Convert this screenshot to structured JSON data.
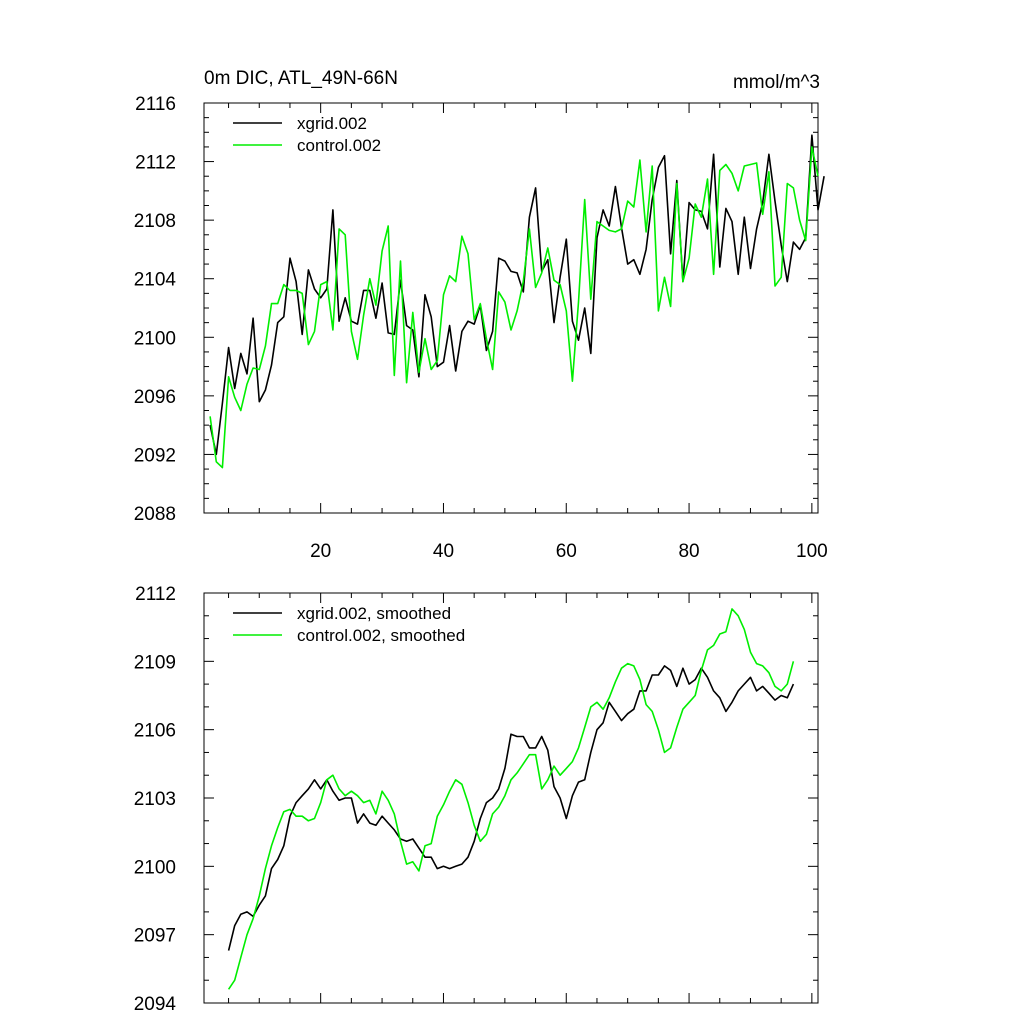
{
  "chart_data": [
    {
      "type": "line",
      "title": "0m DIC, ATL_49N-66N",
      "units": "mmol/m^3",
      "xlabel": "",
      "ylabel": "",
      "xlim": [
        1,
        101
      ],
      "ylim": [
        2088,
        2116
      ],
      "yticks": [
        2088,
        2092,
        2096,
        2100,
        2104,
        2108,
        2112,
        2116
      ],
      "yticks_minor_step": 1,
      "xticks": [
        20,
        40,
        60,
        80,
        100
      ],
      "xticks_minor_step": 5,
      "xtick_labels_shown": true,
      "legend": "top-left",
      "series": [
        {
          "name": "xgrid.002",
          "color": "#000000",
          "x_start": 2,
          "values": [
            2094,
            2092,
            2095.5,
            2099.3,
            2096.5,
            2098.9,
            2097.5,
            2101.3,
            2095.6,
            2096.4,
            2098.1,
            2101,
            2101.4,
            2105.4,
            2103.8,
            2100.2,
            2104.6,
            2103.3,
            2102.7,
            2103.3,
            2108.7,
            2101.1,
            2102.7,
            2101.1,
            2100.9,
            2103.2,
            2103.2,
            2101.3,
            2103.7,
            2100.3,
            2100.2,
            2103.9,
            2100.8,
            2100.5,
            2097.3,
            2102.9,
            2101.4,
            2098,
            2098.3,
            2100.8,
            2097.7,
            2100.4,
            2101.1,
            2100.9,
            2102.2,
            2099.1,
            2100.4,
            2105.4,
            2105.2,
            2104.5,
            2104.4,
            2103.1,
            2108.2,
            2110.2,
            2104.5,
            2105.3,
            2101,
            2104.1,
            2106.7,
            2101.1,
            2099.8,
            2102,
            2098.9,
            2106.8,
            2108.7,
            2107.6,
            2110.3,
            2107.5,
            2105,
            2105.3,
            2104.3,
            2106,
            2109.4,
            2111.6,
            2112.4,
            2105.7,
            2110.7,
            2103.8,
            2109.2,
            2108.7,
            2108.6,
            2107.4,
            2112.5,
            2104.8,
            2108.8,
            2107.9,
            2104.3,
            2108.2,
            2104.7,
            2107.4,
            2109.2,
            2112.5,
            2109.3,
            2106.3,
            2103.8,
            2106.5,
            2106,
            2106.8,
            2113.8,
            2108.7,
            2111
          ]
        },
        {
          "name": "control.002",
          "color": "#00ee00",
          "x_start": 2,
          "values": [
            2094.6,
            2091.5,
            2091.1,
            2097.3,
            2095.9,
            2095,
            2096.8,
            2097.9,
            2097.8,
            2099.4,
            2102.3,
            2102.3,
            2103.6,
            2103.2,
            2103.2,
            2103,
            2099.5,
            2100.4,
            2103.6,
            2103.8,
            2100.5,
            2107.4,
            2107,
            2100.4,
            2098.5,
            2101.5,
            2104,
            2102.2,
            2105.9,
            2107.6,
            2097.4,
            2105.2,
            2096.9,
            2101.7,
            2097.6,
            2099.9,
            2097.8,
            2098.4,
            2102.9,
            2104.2,
            2103.8,
            2106.9,
            2105.7,
            2101.2,
            2102.3,
            2099.9,
            2097.8,
            2103.1,
            2102.4,
            2100.5,
            2101.8,
            2103.8,
            2107.4,
            2103.4,
            2104.4,
            2106.1,
            2103.9,
            2103.6,
            2101.8,
            2097,
            2102.4,
            2109.4,
            2102.6,
            2107.9,
            2107.6,
            2107.3,
            2107.2,
            2107.4,
            2109.3,
            2108.9,
            2112.1,
            2107.2,
            2111.7,
            2101.8,
            2104.1,
            2102.1,
            2110.5,
            2103.8,
            2105.4,
            2109.1,
            2108.2,
            2110.8,
            2104.3,
            2111.4,
            2111.8,
            2111.2,
            2110,
            2111.7,
            2111.8,
            2111.9,
            2108.4,
            2111.3,
            2103.5,
            2104.1,
            2110.5,
            2110.2,
            2108,
            2106.6,
            2113,
            2111
          ]
        }
      ]
    },
    {
      "type": "line",
      "title": "",
      "xlabel": "",
      "ylabel": "",
      "xlim": [
        1,
        101
      ],
      "ylim": [
        2094,
        2112
      ],
      "yticks": [
        2094,
        2097,
        2100,
        2103,
        2106,
        2109,
        2112
      ],
      "yticks_minor_step": 1,
      "xticks": [
        20,
        40,
        60,
        80,
        100
      ],
      "xticks_minor_step": 5,
      "xtick_labels_shown": false,
      "legend": "top-left",
      "series": [
        {
          "name": "xgrid.002, smoothed",
          "color": "#000000",
          "x_start": 5,
          "values": [
            2096.3,
            2097.4,
            2097.9,
            2098,
            2097.8,
            2098.3,
            2098.7,
            2099.9,
            2100.3,
            2100.9,
            2102.2,
            2102.8,
            2103.1,
            2103.4,
            2103.8,
            2103.4,
            2103.8,
            2103.3,
            2102.9,
            2103,
            2103,
            2101.9,
            2102.3,
            2101.9,
            2101.8,
            2102.2,
            2101.9,
            2101.6,
            2101.2,
            2101.1,
            2101.2,
            2100.8,
            2100.4,
            2100.4,
            2099.9,
            2100,
            2099.9,
            2100,
            2100.1,
            2100.4,
            2101.1,
            2102.1,
            2102.8,
            2103,
            2103.4,
            2104.3,
            2105.8,
            2105.7,
            2105.7,
            2105.2,
            2105.2,
            2105.7,
            2105.1,
            2103.5,
            2103,
            2102.1,
            2103.1,
            2103.7,
            2103.8,
            2105,
            2106,
            2106.3,
            2107.2,
            2106.8,
            2106.4,
            2106.7,
            2106.9,
            2107.7,
            2107.7,
            2108.4,
            2108.4,
            2108.8,
            2108.6,
            2107.9,
            2108.7,
            2108,
            2108.2,
            2108.7,
            2108.3,
            2107.7,
            2107.4,
            2106.8,
            2107.2,
            2107.7,
            2108,
            2108.3,
            2107.7,
            2107.9,
            2107.6,
            2107.3,
            2107.5,
            2107.4,
            2108
          ]
        },
        {
          "name": "control.002, smoothed",
          "color": "#00ee00",
          "x_start": 5,
          "values": [
            2094.6,
            2095,
            2096,
            2097,
            2097.7,
            2098.7,
            2099.9,
            2100.9,
            2101.7,
            2102.4,
            2102.5,
            2102.2,
            2102.2,
            2102,
            2102.1,
            2102.8,
            2103.8,
            2104,
            2103.4,
            2103.1,
            2103.3,
            2103.1,
            2102.8,
            2102.9,
            2102.3,
            2103.3,
            2102.9,
            2102.3,
            2101.1,
            2100.1,
            2100.2,
            2099.8,
            2100.9,
            2101,
            2102.2,
            2102.7,
            2103.3,
            2103.8,
            2103.6,
            2102.8,
            2101.8,
            2101.1,
            2101.4,
            2102.3,
            2102.6,
            2103.1,
            2103.8,
            2104.1,
            2104.5,
            2104.9,
            2104.9,
            2103.4,
            2103.8,
            2104.4,
            2104,
            2104.3,
            2104.6,
            2105.2,
            2106.1,
            2107,
            2107.2,
            2106.9,
            2107.4,
            2108.1,
            2108.7,
            2108.9,
            2108.8,
            2108.2,
            2107.1,
            2106.8,
            2106,
            2105,
            2105.2,
            2106.1,
            2106.9,
            2107.2,
            2107.5,
            2108.6,
            2109.5,
            2109.7,
            2110.2,
            2110.3,
            2111.3,
            2111,
            2110.4,
            2109.4,
            2108.9,
            2108.8,
            2108.5,
            2107.9,
            2107.7,
            2108,
            2109
          ]
        }
      ]
    }
  ]
}
